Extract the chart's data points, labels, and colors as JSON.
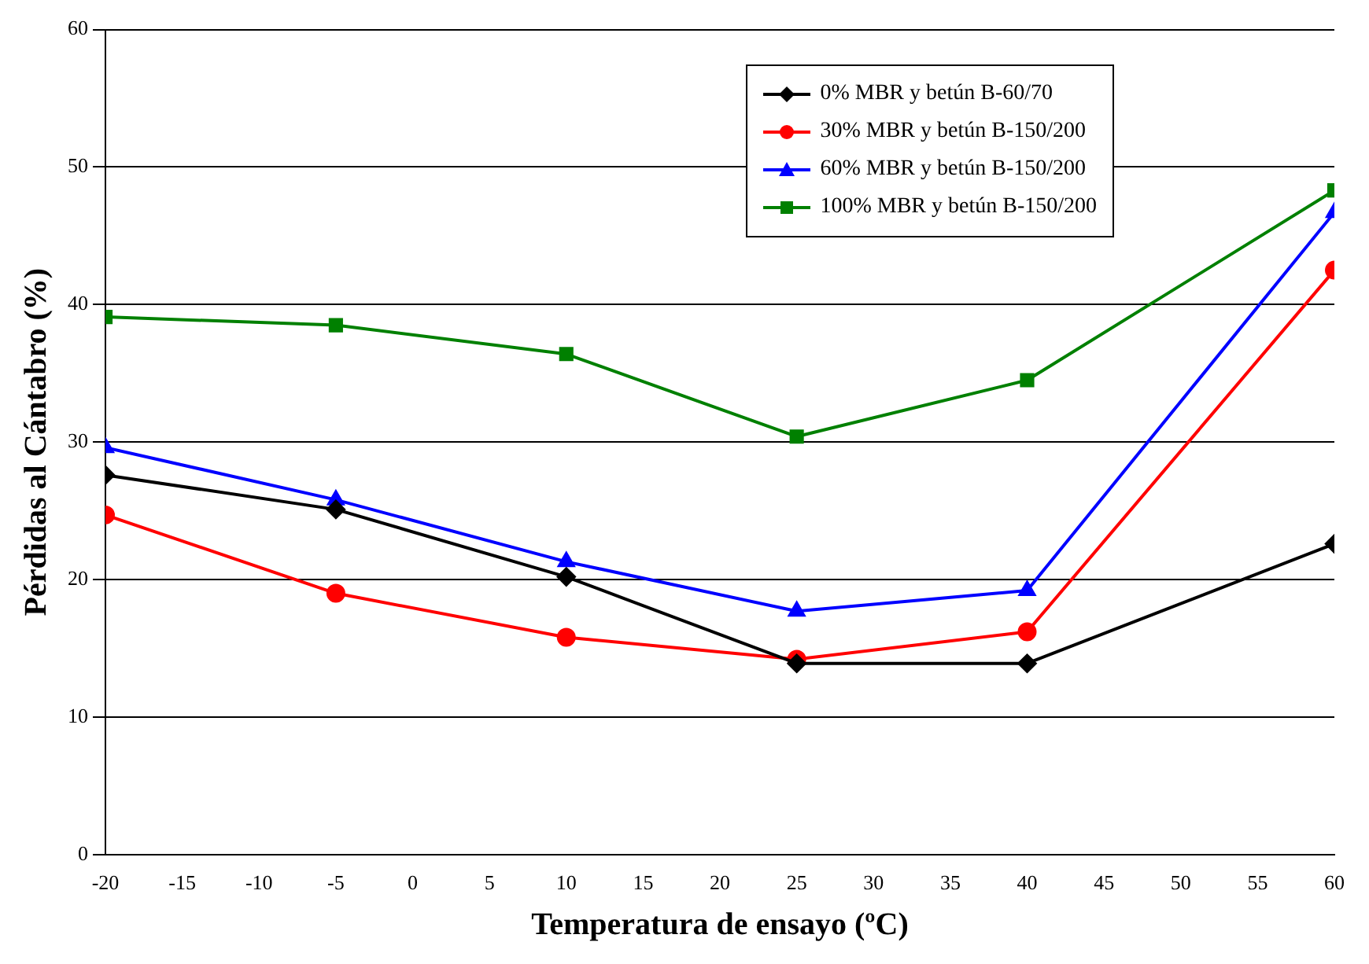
{
  "chart_data": {
    "type": "line",
    "xlabel": "Temperatura de ensayo (ºC)",
    "ylabel": "Pérdidas al Cántabro (%)",
    "x": [
      -20,
      -5,
      10,
      25,
      40,
      60
    ],
    "xlim": [
      -20,
      60
    ],
    "xticks": [
      -20,
      -15,
      -10,
      -5,
      0,
      5,
      10,
      15,
      20,
      25,
      30,
      35,
      40,
      45,
      50,
      55,
      60
    ],
    "ylim": [
      0,
      60
    ],
    "yticks": [
      0,
      10,
      20,
      30,
      40,
      50,
      60
    ],
    "grid": "y",
    "legend": "top right",
    "line_style": "solid",
    "series": [
      {
        "name": "0% MBR y betún B-60/70",
        "color": "#000000",
        "marker": "diamond",
        "values": [
          27.6,
          25.1,
          20.2,
          13.9,
          13.9,
          22.6
        ]
      },
      {
        "name": "30% MBR y betún B-150/200",
        "color": "#ff0000",
        "marker": "circle",
        "values": [
          24.7,
          19.0,
          15.8,
          14.2,
          16.2,
          42.5
        ]
      },
      {
        "name": "60% MBR y betún B-150/200",
        "color": "#0000ff",
        "marker": "triangle",
        "values": [
          29.6,
          25.8,
          21.3,
          17.7,
          19.2,
          46.7
        ]
      },
      {
        "name": "100% MBR y betún B-150/200",
        "color": "#008000",
        "marker": "square",
        "values": [
          39.1,
          38.5,
          36.4,
          30.4,
          34.5,
          48.3
        ]
      }
    ]
  }
}
